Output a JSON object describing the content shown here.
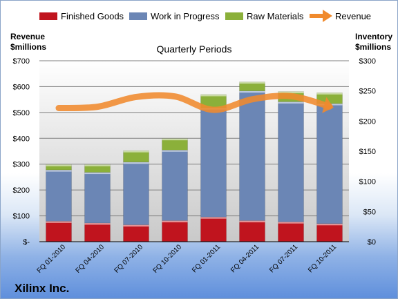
{
  "company": "Xilinx Inc.",
  "left_axis_title": [
    "Revenue",
    "$millions"
  ],
  "right_axis_title": [
    "Inventory",
    "$millions"
  ],
  "chart_data": {
    "type": "bar",
    "title": "Quarterly Periods",
    "stacked": true,
    "categories": [
      "FQ 01-2010",
      "FQ 04-2010",
      "FQ 07-2010",
      "FQ 10-2010",
      "FQ 01-2011",
      "FQ 04-2011",
      "FQ 07-2011",
      "FQ 10-2011"
    ],
    "series": [
      {
        "name": "Finished Goods",
        "axis": "right",
        "color": "#c0141e",
        "values": [
          34,
          31,
          28,
          35,
          41,
          35,
          33,
          30
        ]
      },
      {
        "name": "Work in Progress",
        "axis": "right",
        "color": "#6b86b5",
        "values": [
          85,
          84,
          104,
          117,
          181,
          215,
          199,
          199
        ]
      },
      {
        "name": "Raw Materials",
        "axis": "right",
        "color": "#8bb03a",
        "values": [
          9,
          13,
          19,
          19,
          22,
          15,
          17,
          18
        ]
      }
    ],
    "line": {
      "name": "Revenue",
      "axis": "left",
      "color": "#f08a2d",
      "values": [
        517,
        522,
        560,
        562,
        510,
        551,
        563,
        523
      ]
    },
    "left_axis": {
      "min": 0,
      "max": 700,
      "ticks": [
        "$-",
        "$100",
        "$200",
        "$300",
        "$400",
        "$500",
        "$600",
        "$700"
      ]
    },
    "right_axis": {
      "min": 0,
      "max": 300,
      "ticks": [
        "$0",
        "$50",
        "$100",
        "$150",
        "$200",
        "$250",
        "$300"
      ]
    },
    "grid": true,
    "legend_position": "top"
  }
}
